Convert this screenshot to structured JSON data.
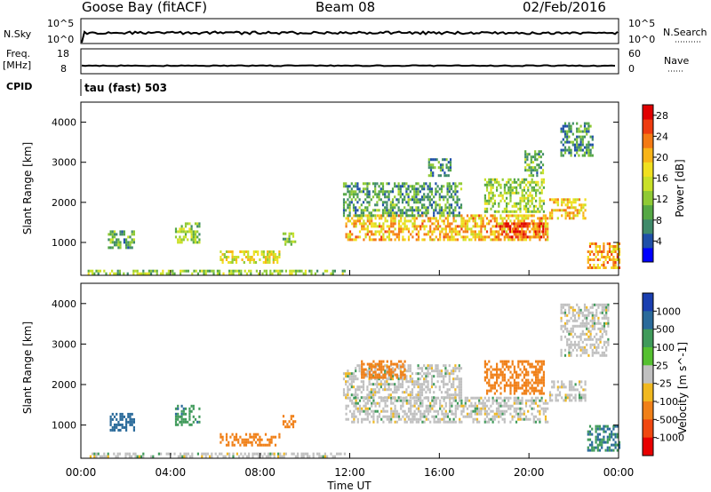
{
  "header": {
    "station": "Goose Bay (fitACF)",
    "beam": "Beam 08",
    "date": "02/Feb/2016"
  },
  "top_panels": {
    "nsky_label": "N.Sky",
    "nsky_ticks": [
      "10^5",
      "10^0"
    ],
    "nsearch_label": "N.Search",
    "nsearch_ticks": [
      "10^5",
      "10^0"
    ],
    "freq_label_1": "Freq.",
    "freq_label_2": "[MHz]",
    "freq_ticks": [
      "18",
      "8"
    ],
    "nave_label": "Nave",
    "nave_ticks": [
      "60",
      "0"
    ],
    "cpid_label": "CPID",
    "cpid_value": "tau (fast) 503"
  },
  "chart_data": [
    {
      "type": "heatmap",
      "title": "",
      "ylabel": "Slant Range [km]",
      "xlabel": "",
      "xlim": [
        "00:00",
        "24:00"
      ],
      "ylim": [
        180,
        4500
      ],
      "yticks": [
        "1000",
        "2000",
        "3000",
        "4000"
      ],
      "colorbar": {
        "label": "Power [dB]",
        "ticks": [
          "4",
          "8",
          "12",
          "16",
          "20",
          "24",
          "28"
        ],
        "range": [
          0,
          30
        ],
        "colors": [
          "#0000ff",
          "#1f4fa8",
          "#3f8a6a",
          "#55a845",
          "#8fca35",
          "#c8e028",
          "#f0e020",
          "#f8b418",
          "#f47a14",
          "#ee3c10",
          "#e00000"
        ]
      },
      "regions": [
        {
          "t": [
            0.3,
            11.8
          ],
          "r": [
            200,
            320
          ],
          "v": 12
        },
        {
          "t": [
            1.2,
            2.4
          ],
          "r": [
            900,
            1300
          ],
          "v": 10
        },
        {
          "t": [
            4.2,
            5.3
          ],
          "r": [
            1000,
            1500
          ],
          "v": 12
        },
        {
          "t": [
            6.2,
            8.9
          ],
          "r": [
            500,
            800
          ],
          "v": 17
        },
        {
          "t": [
            9.0,
            9.6
          ],
          "r": [
            950,
            1250
          ],
          "v": 12
        },
        {
          "t": [
            11.8,
            20.8
          ],
          "r": [
            1100,
            1700
          ],
          "v": 20
        },
        {
          "t": [
            18.5,
            20.6
          ],
          "r": [
            1150,
            1500
          ],
          "v": 26
        },
        {
          "t": [
            11.7,
            17.0
          ],
          "r": [
            1700,
            2500
          ],
          "v": 9
        },
        {
          "t": [
            18.0,
            20.7
          ],
          "r": [
            1800,
            2600
          ],
          "v": 13
        },
        {
          "t": [
            20.9,
            22.5
          ],
          "r": [
            1600,
            2100
          ],
          "v": 19
        },
        {
          "t": [
            22.6,
            24.0
          ],
          "r": [
            400,
            1000
          ],
          "v": 21
        },
        {
          "t": [
            15.5,
            16.5
          ],
          "r": [
            2700,
            3100
          ],
          "v": 8
        },
        {
          "t": [
            19.8,
            20.6
          ],
          "r": [
            2700,
            3300
          ],
          "v": 10
        },
        {
          "t": [
            21.4,
            22.8
          ],
          "r": [
            3200,
            4000
          ],
          "v": 8
        }
      ]
    },
    {
      "type": "heatmap",
      "title": "",
      "ylabel": "Slant Range [km]",
      "xlabel": "Time UT",
      "xlim": [
        "00:00",
        "24:00"
      ],
      "ylim": [
        180,
        4500
      ],
      "xticks": [
        "00:00",
        "04:00",
        "08:00",
        "12:00",
        "16:00",
        "20:00",
        "00:00"
      ],
      "yticks": [
        "1000",
        "2000",
        "3000",
        "4000"
      ],
      "colorbar": {
        "label": "Velocity [m s^-1]",
        "ticks": [
          "1000",
          "500",
          "100",
          "25",
          "-25",
          "-100",
          "-500",
          "-1000"
        ],
        "colors": [
          "#1a3fb0",
          "#2a6a9a",
          "#3f9a5a",
          "#55c030",
          "#c0c0c0",
          "#f0b820",
          "#f08018",
          "#f04810",
          "#e80000"
        ]
      },
      "regions": [
        {
          "t": [
            0.3,
            11.8
          ],
          "r": [
            200,
            320
          ],
          "v": 0
        },
        {
          "t": [
            1.2,
            2.4
          ],
          "r": [
            900,
            1300
          ],
          "v": 150
        },
        {
          "t": [
            4.2,
            5.3
          ],
          "r": [
            1000,
            1500
          ],
          "v": 80
        },
        {
          "t": [
            6.2,
            8.9
          ],
          "r": [
            500,
            800
          ],
          "v": -150
        },
        {
          "t": [
            9.0,
            9.6
          ],
          "r": [
            950,
            1250
          ],
          "v": -200
        },
        {
          "t": [
            11.8,
            20.8
          ],
          "r": [
            1100,
            1700
          ],
          "v": 0
        },
        {
          "t": [
            11.7,
            17.0
          ],
          "r": [
            1700,
            2500
          ],
          "v": 0
        },
        {
          "t": [
            12.5,
            14.5
          ],
          "r": [
            2200,
            2600
          ],
          "v": -300
        },
        {
          "t": [
            18.0,
            20.7
          ],
          "r": [
            1800,
            2600
          ],
          "v": -150
        },
        {
          "t": [
            20.9,
            22.5
          ],
          "r": [
            1600,
            2100
          ],
          "v": 0
        },
        {
          "t": [
            22.6,
            24.0
          ],
          "r": [
            400,
            1000
          ],
          "v": 100
        },
        {
          "t": [
            21.4,
            23.5
          ],
          "r": [
            2700,
            4000
          ],
          "v": 0
        }
      ]
    }
  ],
  "colors": {
    "axis": "#000000",
    "ground_scatter": "#c0c0c0"
  }
}
